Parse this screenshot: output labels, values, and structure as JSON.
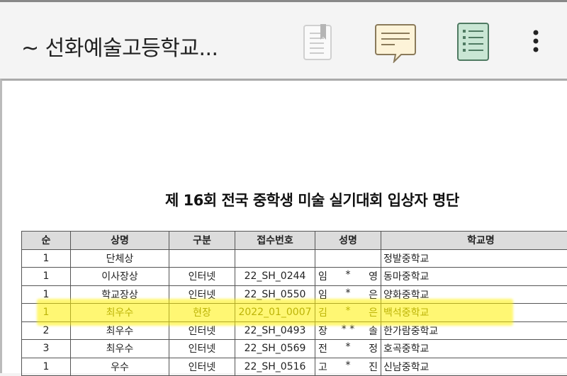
{
  "header": {
    "title": "~ 선화예술고등학교...",
    "icons": [
      "bookmark-document-icon",
      "comment-icon",
      "list-icon",
      "more-vert-icon"
    ],
    "colors": {
      "comment": "#fdf3d8",
      "list": "#c9e6d4"
    }
  },
  "document": {
    "title": "제 16회 전국 중학생 미술 실기대회 입상자 명단",
    "columns": [
      "순",
      "상명",
      "구분",
      "접수번호",
      "성명",
      "학교명"
    ],
    "rows": [
      {
        "rank": "1",
        "award": "단체상",
        "type": "",
        "id": "",
        "name": [
          "",
          "",
          ""
        ],
        "school": "정발중학교"
      },
      {
        "rank": "1",
        "award": "이사장상",
        "type": "인터넷",
        "id": "22_SH_0244",
        "name": [
          "임",
          "*",
          "영"
        ],
        "school": "동마중학교"
      },
      {
        "rank": "1",
        "award": "학교장상",
        "type": "인터넷",
        "id": "22_SH_0550",
        "name": [
          "임",
          "*",
          "은"
        ],
        "school": "양화중학교"
      },
      {
        "rank": "1",
        "award": "최우수",
        "type": "현장",
        "id": "2022_01_0007",
        "name": [
          "김",
          "*",
          "은"
        ],
        "school": "백석중학교",
        "highlighted": true
      },
      {
        "rank": "2",
        "award": "최우수",
        "type": "인터넷",
        "id": "22_SH_0493",
        "name": [
          "장",
          "* *",
          "솔"
        ],
        "school": "한가람중학교"
      },
      {
        "rank": "3",
        "award": "최우수",
        "type": "인터넷",
        "id": "22_SH_0569",
        "name": [
          "전",
          "*",
          "정"
        ],
        "school": "호곡중학교"
      },
      {
        "rank": "1",
        "award": "우수",
        "type": "인터넷",
        "id": "22_SH_0516",
        "name": [
          "고",
          "*",
          "진"
        ],
        "school": "신남중학교"
      }
    ],
    "highlight_color": "#fff000"
  }
}
